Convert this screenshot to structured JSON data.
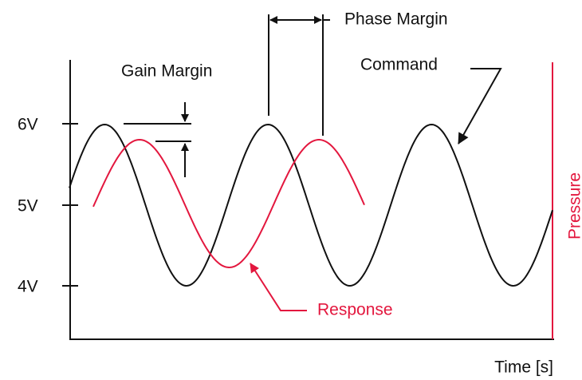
{
  "labels": {
    "gain_margin": "Gain Margin",
    "phase_margin": "Phase Margin",
    "command": "Command",
    "response": "Response",
    "pressure": "Pressure",
    "time": "Time [s]"
  },
  "y_axis": {
    "ticks": [
      "6V",
      "5V",
      "4V"
    ]
  }
}
